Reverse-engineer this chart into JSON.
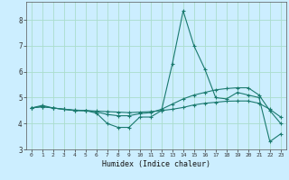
{
  "title": "",
  "xlabel": "Humidex (Indice chaleur)",
  "bg_color": "#cceeff",
  "grid_color": "#aaddcc",
  "line_color": "#1a7a6e",
  "xlim": [
    -0.5,
    23.5
  ],
  "ylim": [
    3,
    8.7
  ],
  "yticks": [
    3,
    4,
    5,
    6,
    7,
    8
  ],
  "xticks": [
    0,
    1,
    2,
    3,
    4,
    5,
    6,
    7,
    8,
    9,
    10,
    11,
    12,
    13,
    14,
    15,
    16,
    17,
    18,
    19,
    20,
    21,
    22,
    23
  ],
  "line1": {
    "x": [
      0,
      1,
      2,
      3,
      4,
      5,
      6,
      7,
      8,
      9,
      10,
      11,
      12,
      13,
      14,
      15,
      16,
      17,
      18,
      19,
      20,
      21,
      22,
      23
    ],
    "y": [
      4.6,
      4.7,
      4.6,
      4.55,
      4.5,
      4.5,
      4.4,
      4.0,
      3.85,
      3.85,
      4.25,
      4.25,
      4.5,
      6.3,
      8.35,
      7.0,
      6.1,
      5.0,
      4.95,
      5.2,
      5.1,
      5.0,
      3.3,
      3.6
    ]
  },
  "line2": {
    "x": [
      0,
      1,
      2,
      3,
      4,
      5,
      6,
      7,
      8,
      9,
      10,
      11,
      12,
      13,
      14,
      15,
      16,
      17,
      18,
      19,
      20,
      21,
      22,
      23
    ],
    "y": [
      4.6,
      4.65,
      4.6,
      4.55,
      4.5,
      4.5,
      4.45,
      4.35,
      4.3,
      4.3,
      4.38,
      4.42,
      4.55,
      4.75,
      4.95,
      5.1,
      5.2,
      5.3,
      5.35,
      5.38,
      5.38,
      5.1,
      4.5,
      4.0
    ]
  },
  "line3": {
    "x": [
      0,
      1,
      2,
      3,
      4,
      5,
      6,
      7,
      8,
      9,
      10,
      11,
      12,
      13,
      14,
      15,
      16,
      17,
      18,
      19,
      20,
      21,
      22,
      23
    ],
    "y": [
      4.6,
      4.65,
      4.6,
      4.55,
      4.52,
      4.5,
      4.48,
      4.46,
      4.44,
      4.42,
      4.44,
      4.46,
      4.5,
      4.55,
      4.62,
      4.72,
      4.78,
      4.82,
      4.86,
      4.87,
      4.87,
      4.78,
      4.55,
      4.25
    ]
  }
}
